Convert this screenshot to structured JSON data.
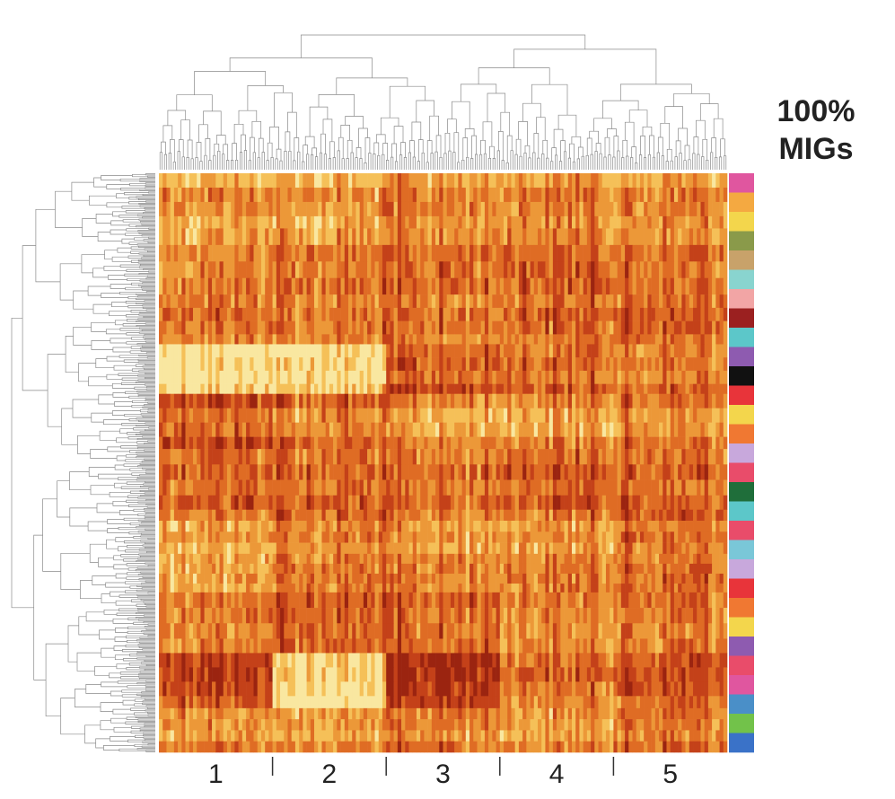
{
  "chart_data": {
    "type": "heatmap",
    "title_lines": [
      "100%",
      "MIGs"
    ],
    "column_clusters": [
      "1",
      "2",
      "3",
      "4",
      "5"
    ],
    "dendrograms": {
      "top": true,
      "left": true
    },
    "color_scale": [
      "#f9e7a0",
      "#f5c058",
      "#ec9838",
      "#df6c24",
      "#c44119",
      "#9b2410"
    ],
    "row_blocks": [
      {
        "label": "row-block-1",
        "pattern": [
          0.6,
          0.62,
          0.55,
          0.5,
          0.55
        ],
        "rows": 50
      },
      {
        "label": "row-block-2",
        "pattern": [
          0.55,
          0.5,
          0.45,
          0.4,
          0.48
        ],
        "rows": 60
      },
      {
        "label": "row-block-3",
        "pattern": [
          0.45,
          0.5,
          0.5,
          0.42,
          0.4
        ],
        "rows": 45
      },
      {
        "label": "row-block-4",
        "pattern": [
          0.85,
          0.8,
          0.3,
          0.35,
          0.4
        ],
        "rows": 45
      },
      {
        "label": "row-block-5",
        "pattern": [
          0.3,
          0.45,
          0.6,
          0.55,
          0.5
        ],
        "rows": 50
      },
      {
        "label": "row-block-6",
        "pattern": [
          0.4,
          0.45,
          0.5,
          0.4,
          0.45
        ],
        "rows": 55
      },
      {
        "label": "row-block-7",
        "pattern": [
          0.55,
          0.45,
          0.55,
          0.5,
          0.4
        ],
        "rows": 40
      },
      {
        "label": "row-block-8",
        "pattern": [
          0.7,
          0.55,
          0.6,
          0.55,
          0.5
        ],
        "rows": 35
      },
      {
        "label": "row-block-9",
        "pattern": [
          0.4,
          0.3,
          0.35,
          0.45,
          0.4
        ],
        "rows": 55
      },
      {
        "label": "row-block-10",
        "pattern": [
          0.25,
          0.9,
          0.2,
          0.45,
          0.35
        ],
        "rows": 50
      },
      {
        "label": "row-block-11",
        "pattern": [
          0.55,
          0.6,
          0.5,
          0.55,
          0.45
        ],
        "rows": 40
      }
    ],
    "row_annotation_colors": [
      "#e0569f",
      "#f4a941",
      "#f3d64c",
      "#8a9a4a",
      "#c8a26a",
      "#89d4cf",
      "#f2a5a5",
      "#9b2020",
      "#5cc7c9",
      "#8e5bb0",
      "#111111",
      "#e8343a",
      "#f3d64c",
      "#f07832",
      "#c8a8dc",
      "#e94c6a",
      "#1f6e3a",
      "#5cc7c9",
      "#e94c6a",
      "#7ac7d8",
      "#c8a8dc",
      "#e8343a",
      "#f07832",
      "#f3d64c",
      "#8e5bb0",
      "#e94c6a",
      "#e0569f",
      "#4a8fc8",
      "#72c24a",
      "#3a72c8"
    ]
  }
}
